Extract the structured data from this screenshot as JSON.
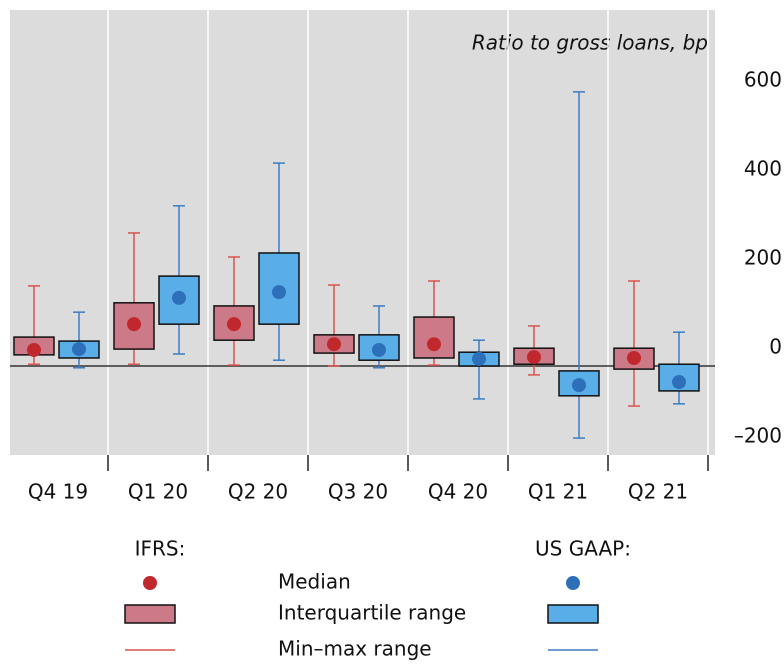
{
  "chart_data": {
    "type": "box",
    "annotation": "Ratio to gross loans, bp",
    "categories": [
      "Q4 19",
      "Q1 20",
      "Q2 20",
      "Q3 20",
      "Q4 20",
      "Q1 21",
      "Q2 21"
    ],
    "ylim": [
      -200,
      800
    ],
    "yticks": [
      {
        "value": -200,
        "label": "–200"
      },
      0,
      200,
      400,
      600
    ],
    "legend_items": [
      "Median",
      "Interquartile range",
      "Min–max range"
    ],
    "series": [
      {
        "name": "IFRS:",
        "color": "#c0282d",
        "fill": "#cc7a88",
        "whisker_color": "#d9534f",
        "median": [
          36,
          94,
          94,
          49,
          49,
          20,
          18
        ],
        "q1": [
          25,
          38,
          58,
          29,
          18,
          4,
          -7
        ],
        "q3": [
          65,
          142,
          135,
          70,
          110,
          40,
          40
        ],
        "min": [
          4,
          4,
          2,
          0,
          2,
          -20,
          -90
        ],
        "max": [
          180,
          299,
          245,
          182,
          191,
          90,
          191
        ]
      },
      {
        "name": "US GAAP:",
        "color": "#2e6fba",
        "fill": "#5aaee8",
        "whisker_color": "#3b7cc4",
        "median": [
          38,
          153,
          166,
          36,
          16,
          -43,
          -36
        ],
        "q1": [
          18,
          94,
          94,
          13,
          0,
          -67,
          -56
        ],
        "q3": [
          56,
          202,
          254,
          70,
          31,
          -11,
          4
        ],
        "min": [
          -4,
          27,
          13,
          -4,
          -74,
          -162,
          -85
        ],
        "max": [
          121,
          360,
          456,
          135,
          58,
          616,
          76
        ]
      }
    ]
  }
}
